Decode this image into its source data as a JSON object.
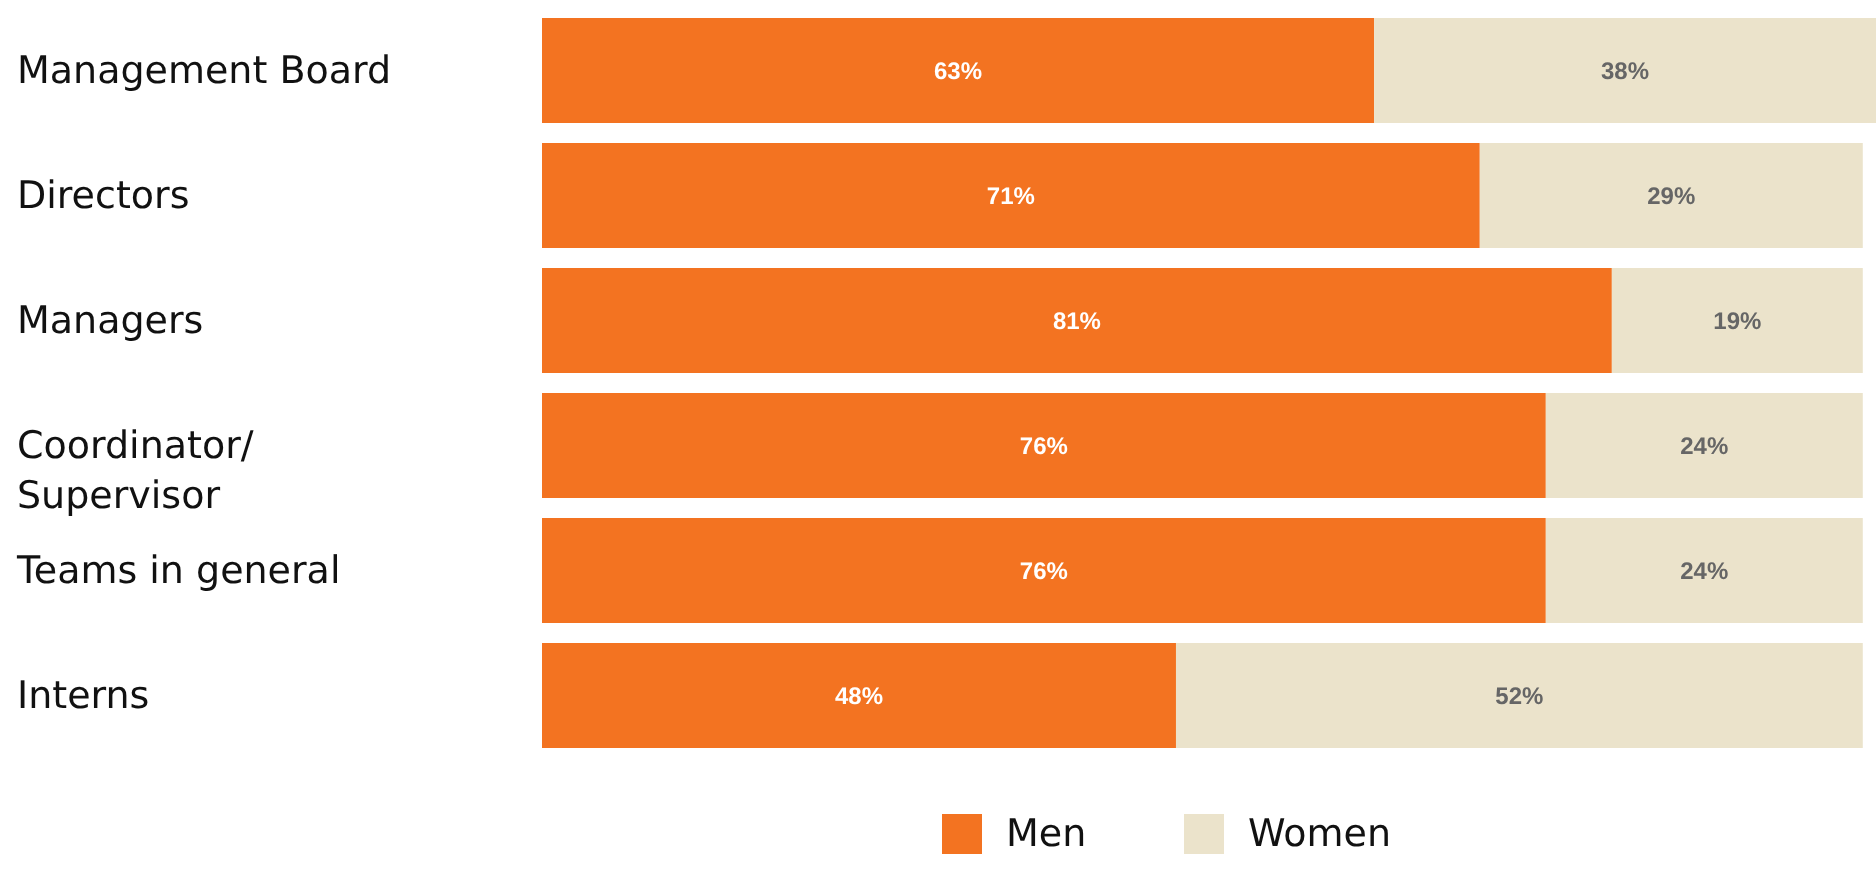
{
  "chart_data": {
    "type": "bar",
    "orientation": "horizontal",
    "stacked": true,
    "legend": "bottom",
    "tick_labels": "y",
    "xlim": [
      0,
      101
    ],
    "categories": [
      "Management Board",
      "Directors",
      "Managers",
      "Coordinator/ Supervisor",
      "Teams in general",
      "Interns"
    ],
    "series": [
      {
        "name": "Men",
        "color": "#f37321",
        "values": [
          63,
          71,
          81,
          76,
          76,
          48
        ],
        "value_labels": [
          "63%",
          "71%",
          "81%",
          "76%",
          "76%",
          "48%"
        ]
      },
      {
        "name": "Women",
        "color": "#ebe3cb",
        "values": [
          38,
          29,
          19,
          24,
          24,
          52
        ],
        "value_labels": [
          "38%",
          "29%",
          "19%",
          "24%",
          "24%",
          "52%"
        ]
      }
    ]
  }
}
